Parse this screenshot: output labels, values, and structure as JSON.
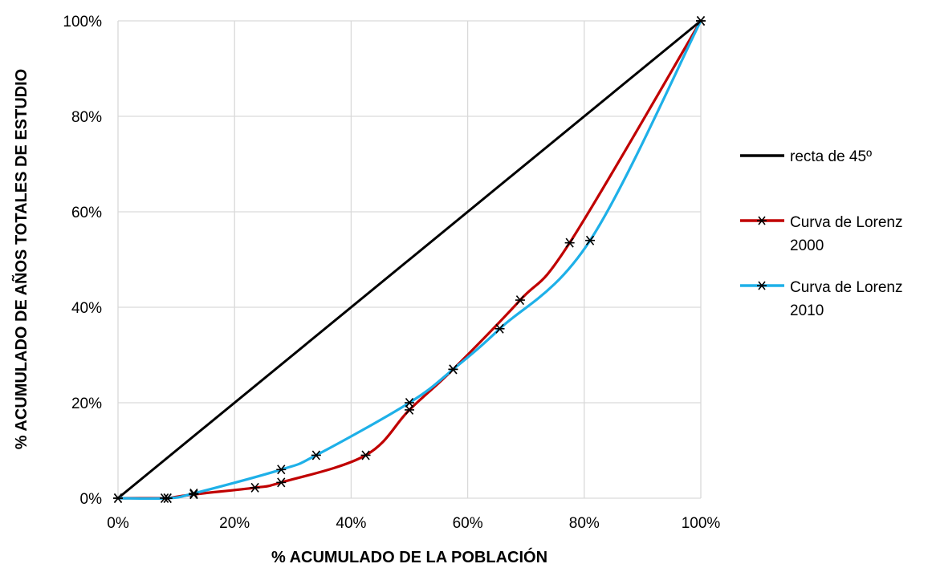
{
  "chart_data": {
    "type": "line",
    "title": "",
    "xlabel": "% ACUMULADO DE LA POBLACIÓN",
    "ylabel": "% ACUMULADO DE AÑOS TOTALES DE ESTUDIO",
    "xlim": [
      0,
      100
    ],
    "ylim": [
      0,
      100
    ],
    "x_ticks": [
      "0%",
      "20%",
      "40%",
      "60%",
      "80%",
      "100%"
    ],
    "y_ticks": [
      "0%",
      "20%",
      "40%",
      "60%",
      "80%",
      "100%"
    ],
    "grid": true,
    "legend_position": "right",
    "series": [
      {
        "name": "recta de 45º",
        "color": "#000000",
        "marker": "none",
        "x": [
          0,
          100
        ],
        "y": [
          0,
          100
        ]
      },
      {
        "name_lines": [
          "Curva de Lorenz",
          "2000"
        ],
        "color": "#c00000",
        "marker": "asterisk",
        "x": [
          0,
          8,
          8.5,
          13,
          23.5,
          28,
          42.5,
          50,
          57.5,
          69,
          77.5,
          100
        ],
        "y": [
          0,
          0,
          0,
          0.8,
          2.2,
          3.3,
          9,
          18.5,
          27,
          41.5,
          53.5,
          100
        ]
      },
      {
        "name_lines": [
          "Curva de Lorenz",
          "2010"
        ],
        "color": "#1eb0e8",
        "marker": "asterisk",
        "x": [
          0,
          8.5,
          13,
          28,
          34,
          50,
          57.5,
          65.5,
          81,
          100
        ],
        "y": [
          0,
          0,
          1,
          6,
          9,
          20,
          27,
          35.5,
          54,
          100
        ]
      }
    ]
  }
}
